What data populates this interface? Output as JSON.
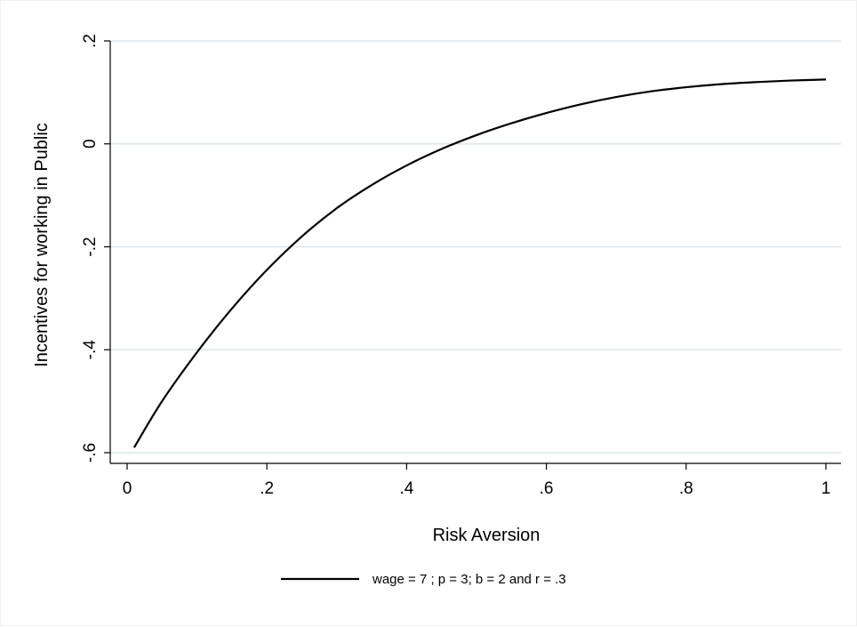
{
  "chart_data": {
    "type": "line",
    "title": "",
    "xlabel": "Risk Aversion",
    "ylabel": "Incentives for working in Public",
    "xlim": [
      0,
      1
    ],
    "ylim": [
      -0.6,
      0.2
    ],
    "x_ticks": [
      {
        "value": 0,
        "label": "0"
      },
      {
        "value": 0.2,
        "label": ".2"
      },
      {
        "value": 0.4,
        "label": ".4"
      },
      {
        "value": 0.6,
        "label": ".6"
      },
      {
        "value": 0.8,
        "label": ".8"
      },
      {
        "value": 1,
        "label": "1"
      }
    ],
    "y_ticks": [
      {
        "value": -0.6,
        "label": "-.6"
      },
      {
        "value": -0.4,
        "label": "-.4"
      },
      {
        "value": -0.2,
        "label": "-.2"
      },
      {
        "value": 0,
        "label": "0"
      },
      {
        "value": 0.2,
        "label": ".2"
      }
    ],
    "grid": "horizontal",
    "legend_position": "bottom",
    "series": [
      {
        "name": "wage = 7 ; p = 3; b = 2 and r = .3",
        "color": "#000000",
        "x": [
          0.01,
          0.05,
          0.1,
          0.15,
          0.2,
          0.25,
          0.3,
          0.35,
          0.4,
          0.45,
          0.5,
          0.55,
          0.6,
          0.65,
          0.7,
          0.75,
          0.8,
          0.85,
          0.9,
          0.95,
          1.0
        ],
        "y": [
          -0.59,
          -0.5,
          -0.405,
          -0.32,
          -0.245,
          -0.18,
          -0.125,
          -0.08,
          -0.042,
          -0.01,
          0.017,
          0.04,
          0.06,
          0.077,
          0.091,
          0.102,
          0.11,
          0.116,
          0.12,
          0.123,
          0.125
        ]
      }
    ]
  },
  "colors": {
    "grid": "#dde6ec",
    "axis": "#000000",
    "background": "#ffffff"
  }
}
